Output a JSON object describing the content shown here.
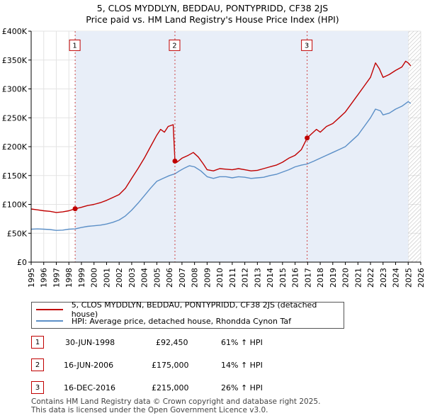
{
  "chart_data": {
    "type": "line",
    "title": "5, CLOS MYDDLYN, BEDDAU, PONTYPRIDD, CF38 2JS",
    "subtitle": "Price paid vs. HM Land Registry's House Price Index (HPI)",
    "xlim": [
      1995,
      2026
    ],
    "ylim": [
      0,
      400000
    ],
    "x_ticks": [
      "1995",
      "1996",
      "1997",
      "1998",
      "1999",
      "2000",
      "2001",
      "2002",
      "2003",
      "2004",
      "2005",
      "2006",
      "2007",
      "2008",
      "2009",
      "2010",
      "2011",
      "2012",
      "2013",
      "2014",
      "2015",
      "2016",
      "2017",
      "2018",
      "2019",
      "2020",
      "2021",
      "2022",
      "2023",
      "2024",
      "2025",
      "2026"
    ],
    "y_ticks": [
      {
        "value": 0,
        "label": "£0"
      },
      {
        "value": 50000,
        "label": "£50K"
      },
      {
        "value": 100000,
        "label": "£100K"
      },
      {
        "value": 150000,
        "label": "£150K"
      },
      {
        "value": 200000,
        "label": "£200K"
      },
      {
        "value": 250000,
        "label": "£250K"
      },
      {
        "value": 300000,
        "label": "£300K"
      },
      {
        "value": 350000,
        "label": "£350K"
      },
      {
        "value": 400000,
        "label": "£400K"
      }
    ],
    "hatched_region_from": 2025.0,
    "series": [
      {
        "name": "5, CLOS MYDDLYN, BEDDAU, PONTYPRIDD, CF38 2JS (detached house)",
        "color": "#c00000",
        "points": [
          [
            1995.0,
            92000
          ],
          [
            1995.5,
            90500
          ],
          [
            1996.0,
            89000
          ],
          [
            1996.5,
            88000
          ],
          [
            1997.0,
            86000
          ],
          [
            1997.5,
            87000
          ],
          [
            1998.0,
            89000
          ],
          [
            1998.3,
            91000
          ],
          [
            1998.5,
            92450
          ],
          [
            1999.0,
            95000
          ],
          [
            1999.5,
            98000
          ],
          [
            2000.0,
            100000
          ],
          [
            2000.5,
            103000
          ],
          [
            2001.0,
            107000
          ],
          [
            2001.5,
            112000
          ],
          [
            2002.0,
            117000
          ],
          [
            2002.5,
            128000
          ],
          [
            2003.0,
            145000
          ],
          [
            2003.5,
            162000
          ],
          [
            2004.0,
            180000
          ],
          [
            2004.5,
            200000
          ],
          [
            2005.0,
            220000
          ],
          [
            2005.3,
            230000
          ],
          [
            2005.6,
            225000
          ],
          [
            2005.9,
            235000
          ],
          [
            2006.3,
            238000
          ],
          [
            2006.44,
            175000
          ],
          [
            2006.6,
            173000
          ],
          [
            2007.0,
            180000
          ],
          [
            2007.5,
            185000
          ],
          [
            2007.9,
            190000
          ],
          [
            2008.3,
            182000
          ],
          [
            2008.7,
            170000
          ],
          [
            2009.0,
            160000
          ],
          [
            2009.5,
            158000
          ],
          [
            2010.0,
            162000
          ],
          [
            2010.5,
            161000
          ],
          [
            2011.0,
            160000
          ],
          [
            2011.5,
            162000
          ],
          [
            2012.0,
            160000
          ],
          [
            2012.5,
            158000
          ],
          [
            2013.0,
            159000
          ],
          [
            2013.5,
            162000
          ],
          [
            2014.0,
            165000
          ],
          [
            2014.5,
            168000
          ],
          [
            2015.0,
            173000
          ],
          [
            2015.5,
            180000
          ],
          [
            2016.0,
            185000
          ],
          [
            2016.5,
            195000
          ],
          [
            2016.96,
            215000
          ],
          [
            2017.3,
            222000
          ],
          [
            2017.7,
            230000
          ],
          [
            2018.0,
            225000
          ],
          [
            2018.5,
            235000
          ],
          [
            2019.0,
            240000
          ],
          [
            2019.5,
            250000
          ],
          [
            2020.0,
            260000
          ],
          [
            2020.5,
            275000
          ],
          [
            2021.0,
            290000
          ],
          [
            2021.5,
            305000
          ],
          [
            2022.0,
            320000
          ],
          [
            2022.4,
            345000
          ],
          [
            2022.7,
            335000
          ],
          [
            2023.0,
            320000
          ],
          [
            2023.5,
            325000
          ],
          [
            2024.0,
            332000
          ],
          [
            2024.5,
            338000
          ],
          [
            2024.8,
            348000
          ],
          [
            2025.0,
            345000
          ],
          [
            2025.2,
            340000
          ]
        ]
      },
      {
        "name": "HPI: Average price, detached house, Rhondda Cynon Taf",
        "color": "#5b8fc7",
        "points": [
          [
            1995.0,
            57000
          ],
          [
            1995.5,
            57500
          ],
          [
            1996.0,
            57000
          ],
          [
            1996.5,
            56500
          ],
          [
            1997.0,
            55000
          ],
          [
            1997.5,
            55500
          ],
          [
            1998.0,
            57000
          ],
          [
            1998.5,
            57500
          ],
          [
            1999.0,
            60000
          ],
          [
            1999.5,
            62000
          ],
          [
            2000.0,
            63000
          ],
          [
            2000.5,
            64000
          ],
          [
            2001.0,
            66000
          ],
          [
            2001.5,
            69000
          ],
          [
            2002.0,
            73000
          ],
          [
            2002.5,
            80000
          ],
          [
            2003.0,
            90000
          ],
          [
            2003.5,
            102000
          ],
          [
            2004.0,
            115000
          ],
          [
            2004.5,
            128000
          ],
          [
            2005.0,
            140000
          ],
          [
            2005.5,
            145000
          ],
          [
            2006.0,
            150000
          ],
          [
            2006.44,
            153000
          ],
          [
            2006.8,
            158000
          ],
          [
            2007.2,
            163000
          ],
          [
            2007.6,
            167000
          ],
          [
            2008.0,
            165000
          ],
          [
            2008.5,
            158000
          ],
          [
            2009.0,
            148000
          ],
          [
            2009.5,
            145000
          ],
          [
            2010.0,
            148000
          ],
          [
            2010.5,
            148000
          ],
          [
            2011.0,
            146000
          ],
          [
            2011.5,
            148000
          ],
          [
            2012.0,
            147000
          ],
          [
            2012.5,
            145000
          ],
          [
            2013.0,
            146000
          ],
          [
            2013.5,
            147000
          ],
          [
            2014.0,
            150000
          ],
          [
            2014.5,
            152000
          ],
          [
            2015.0,
            156000
          ],
          [
            2015.5,
            160000
          ],
          [
            2016.0,
            165000
          ],
          [
            2016.5,
            168000
          ],
          [
            2016.96,
            170000
          ],
          [
            2017.5,
            175000
          ],
          [
            2018.0,
            180000
          ],
          [
            2018.5,
            185000
          ],
          [
            2019.0,
            190000
          ],
          [
            2019.5,
            195000
          ],
          [
            2020.0,
            200000
          ],
          [
            2020.5,
            210000
          ],
          [
            2021.0,
            220000
          ],
          [
            2021.5,
            235000
          ],
          [
            2022.0,
            250000
          ],
          [
            2022.4,
            265000
          ],
          [
            2022.8,
            262000
          ],
          [
            2023.0,
            255000
          ],
          [
            2023.5,
            258000
          ],
          [
            2024.0,
            265000
          ],
          [
            2024.5,
            270000
          ],
          [
            2025.0,
            278000
          ],
          [
            2025.2,
            275000
          ]
        ]
      }
    ],
    "markers": [
      {
        "label": "1",
        "x": 1998.5,
        "y": 92450,
        "box_y": 375000
      },
      {
        "label": "2",
        "x": 2006.44,
        "y": 175000,
        "box_y": 375000
      },
      {
        "label": "3",
        "x": 2016.96,
        "y": 215000,
        "box_y": 375000
      }
    ]
  },
  "legend": {
    "series1": "5, CLOS MYDDLYN, BEDDAU, PONTYPRIDD, CF38 2JS (detached house)",
    "series2": "HPI: Average price, detached house, Rhondda Cynon Taf",
    "color1": "#c00000",
    "color2": "#5b8fc7"
  },
  "sales": [
    {
      "num": "1",
      "date": "30-JUN-1998",
      "price": "£92,450",
      "hpi": "61% ↑ HPI"
    },
    {
      "num": "2",
      "date": "16-JUN-2006",
      "price": "£175,000",
      "hpi": "14% ↑ HPI"
    },
    {
      "num": "3",
      "date": "16-DEC-2016",
      "price": "£215,000",
      "hpi": "26% ↑ HPI"
    }
  ],
  "footer": {
    "line1": "Contains HM Land Registry data © Crown copyright and database right 2025.",
    "line2": "This data is licensed under the Open Government Licence v3.0."
  }
}
